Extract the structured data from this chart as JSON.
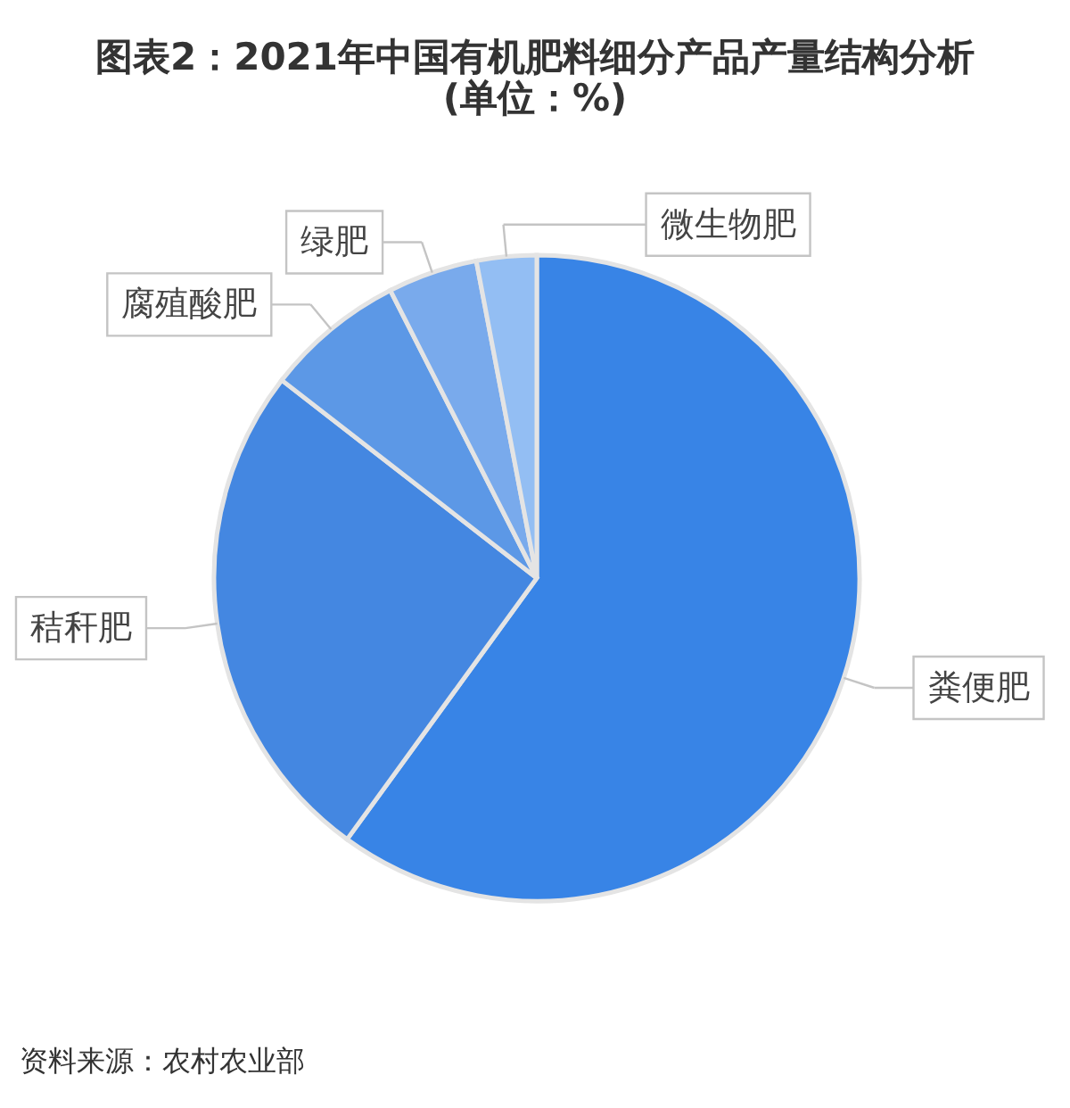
{
  "chart_data": {
    "type": "pie",
    "title": "图表2：2021年中国有机肥料细分产品产量结构分析",
    "subtitle": "(单位：%)",
    "categories": [
      "粪便肥",
      "秸秆肥",
      "腐殖酸肥",
      "绿肥",
      "微生物肥"
    ],
    "values": [
      60,
      25.5,
      7,
      4.5,
      3
    ],
    "colors": [
      "#3884e6",
      "#4487e1",
      "#5c98e6",
      "#79aaec",
      "#93bef3"
    ],
    "annotations": [
      "资料来源：农村农业部"
    ]
  }
}
